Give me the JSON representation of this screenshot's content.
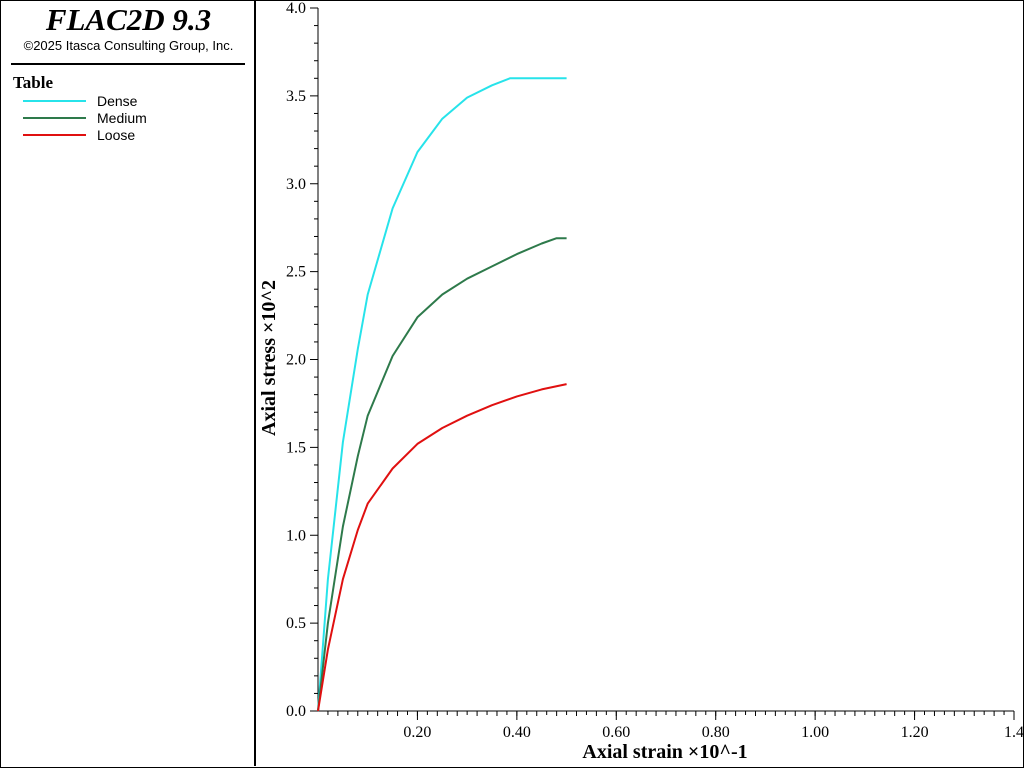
{
  "app": {
    "title": "FLAC2D 9.3",
    "copyright": "©2025 Itasca Consulting Group, Inc."
  },
  "legend": {
    "title": "Table",
    "items": [
      {
        "label": "Dense",
        "color": "#27e3ea"
      },
      {
        "label": "Medium",
        "color": "#2e7a4b"
      },
      {
        "label": "Loose",
        "color": "#e01010"
      }
    ]
  },
  "chart_data": {
    "type": "line",
    "xlabel": "Axial strain ×10^-1",
    "ylabel": "Axial stress ×10^2",
    "xlim": [
      0,
      1.4
    ],
    "ylim": [
      0,
      4.0
    ],
    "x_ticks": [
      0.2,
      0.4,
      0.6,
      0.8,
      1.0,
      1.2,
      1.4
    ],
    "x_tick_labels": [
      "0.20",
      "0.40",
      "0.60",
      "0.80",
      "1.00",
      "1.20",
      "1.4"
    ],
    "y_ticks": [
      0,
      0.5,
      1.0,
      1.5,
      2.0,
      2.5,
      3.0,
      3.5,
      4.0
    ],
    "y_tick_labels": [
      "0.0",
      "0.5",
      "1.0",
      "1.5",
      "2.0",
      "2.5",
      "3.0",
      "3.5",
      "4.0"
    ],
    "grid": false,
    "legend_position": "left panel",
    "series": [
      {
        "name": "Dense",
        "color": "#27e3ea",
        "x": [
          0,
          0.02,
          0.05,
          0.08,
          0.1,
          0.15,
          0.2,
          0.25,
          0.3,
          0.35,
          0.386,
          0.4,
          0.45,
          0.5
        ],
        "y": [
          0,
          0.75,
          1.53,
          2.06,
          2.37,
          2.86,
          3.18,
          3.37,
          3.49,
          3.56,
          3.6,
          3.6,
          3.6,
          3.6
        ]
      },
      {
        "name": "Medium",
        "color": "#2e7a4b",
        "x": [
          0,
          0.02,
          0.05,
          0.08,
          0.1,
          0.15,
          0.2,
          0.25,
          0.3,
          0.35,
          0.4,
          0.45,
          0.48,
          0.5
        ],
        "y": [
          0,
          0.5,
          1.05,
          1.45,
          1.68,
          2.02,
          2.24,
          2.37,
          2.46,
          2.53,
          2.6,
          2.66,
          2.69,
          2.69
        ]
      },
      {
        "name": "Loose",
        "color": "#e01010",
        "x": [
          0,
          0.02,
          0.05,
          0.08,
          0.1,
          0.15,
          0.2,
          0.25,
          0.3,
          0.35,
          0.4,
          0.45,
          0.5
        ],
        "y": [
          0,
          0.35,
          0.75,
          1.03,
          1.18,
          1.38,
          1.52,
          1.61,
          1.68,
          1.74,
          1.79,
          1.83,
          1.86
        ]
      }
    ]
  }
}
